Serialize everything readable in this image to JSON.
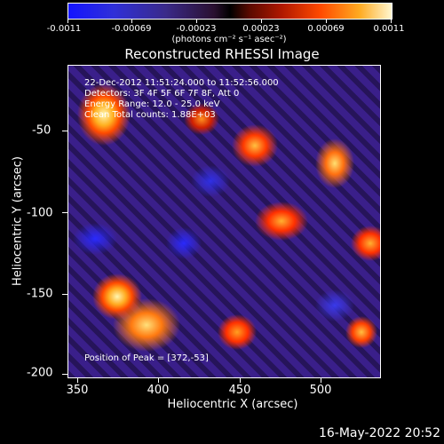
{
  "colorbar": {
    "tick_labels": [
      "-0.0011",
      "-0.00069",
      "-0.00023",
      "0.00023",
      "0.00069",
      "0.0011"
    ],
    "units": "(photons cm⁻² s⁻¹ asec⁻²)"
  },
  "title": "Reconstructed RHESSI Image",
  "info": {
    "line1": "22-Dec-2012 11:51:24.000 to 11:52:56.000",
    "line2": "Detectors: 3F 4F 5F 6F 7F 8F, Att 0",
    "line3": "Energy Range: 12.0 - 25.0 keV",
    "line4": "Clean     Total counts: 1.88E+03",
    "peak": "Position of Peak = [372,-53]"
  },
  "y_axis": {
    "title": "Heliocentric Y (arcsec)",
    "ticks": [
      "-50",
      "-100",
      "-150",
      "-200"
    ]
  },
  "x_axis": {
    "title": "Heliocentric X (arcsec)",
    "ticks": [
      "350",
      "400",
      "450",
      "500"
    ]
  },
  "timestamp": "16-May-2022 20:52",
  "colors": {
    "background": "#000000",
    "text": "#ffffff"
  }
}
